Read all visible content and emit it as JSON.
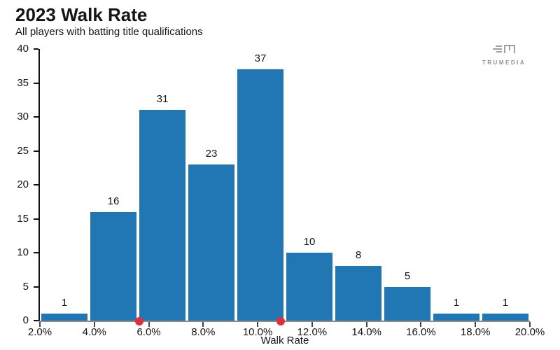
{
  "header": {
    "title": "2023 Walk Rate",
    "subtitle": "All players with batting title qualifications"
  },
  "logo": {
    "text": "TRUMEDIA",
    "color": "#8b9096"
  },
  "chart_data": {
    "type": "bar",
    "subtype": "histogram",
    "title": "2023 Walk Rate",
    "subtitle": "All players with batting title qualifications",
    "xlabel": "Walk Rate",
    "ylabel": "",
    "bin_edges_pct": [
      2.0,
      3.8,
      5.6,
      7.4,
      9.2,
      11.0,
      12.8,
      14.6,
      16.4,
      18.2,
      20.0
    ],
    "values": [
      1,
      16,
      31,
      23,
      37,
      10,
      8,
      5,
      1,
      1
    ],
    "x_tick_labels": [
      "2.0%",
      "4.0%",
      "6.0%",
      "8.0%",
      "10.0%",
      "12.0%",
      "14.0%",
      "16.0%",
      "18.0%",
      "20.0%"
    ],
    "y_ticks": [
      0,
      5,
      10,
      15,
      20,
      25,
      30,
      35,
      40
    ],
    "xlim_pct": [
      2.0,
      20.0
    ],
    "ylim": [
      0,
      40
    ],
    "bar_color": "#2176b4",
    "axis_color": "#111111",
    "baseline_color": "#8c8c8c",
    "markers": [
      {
        "x_pct": 5.65,
        "color": "#e0303a"
      },
      {
        "x_pct": 10.85,
        "color": "#e0303a"
      }
    ],
    "grid": false,
    "legend": false
  }
}
